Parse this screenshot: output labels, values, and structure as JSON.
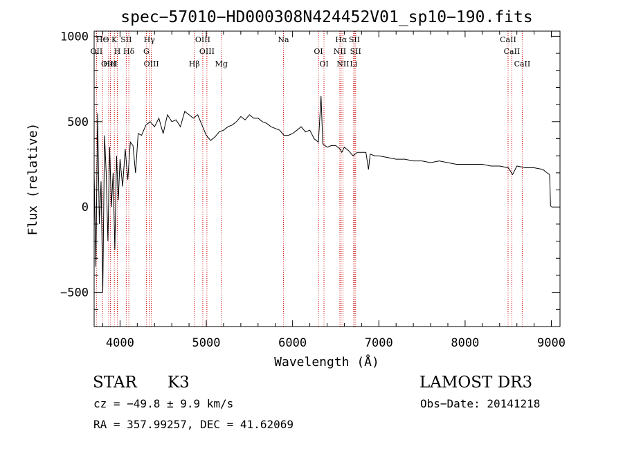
{
  "chart_data": {
    "type": "line",
    "title": "spec−57010−HD000308N424452V01_sp10−190.fits",
    "xlabel": "Wavelength (Å)",
    "ylabel": "Flux (relative)",
    "xlim": [
      3700,
      9100
    ],
    "ylim": [
      -700,
      1030
    ],
    "xticks": [
      4000,
      5000,
      6000,
      7000,
      8000,
      9000
    ],
    "yticks": [
      -500,
      0,
      500,
      1000
    ],
    "x_tick_labels": [
      "4000",
      "5000",
      "6000",
      "7000",
      "8000",
      "9000"
    ],
    "y_tick_labels": [
      "−500",
      "0",
      "500",
      "1000"
    ],
    "series": [
      {
        "name": "flux",
        "x": [
          3700,
          3720,
          3740,
          3760,
          3780,
          3800,
          3820,
          3840,
          3860,
          3880,
          3900,
          3920,
          3940,
          3960,
          3980,
          4000,
          4030,
          4060,
          4090,
          4120,
          4150,
          4180,
          4210,
          4250,
          4300,
          4350,
          4400,
          4450,
          4500,
          4550,
          4600,
          4650,
          4700,
          4750,
          4800,
          4850,
          4900,
          4950,
          5000,
          5050,
          5100,
          5150,
          5200,
          5250,
          5300,
          5350,
          5400,
          5450,
          5500,
          5550,
          5600,
          5650,
          5700,
          5750,
          5800,
          5850,
          5900,
          5950,
          6000,
          6050,
          6100,
          6150,
          6200,
          6250,
          6300,
          6330,
          6350,
          6400,
          6450,
          6500,
          6550,
          6570,
          6600,
          6650,
          6700,
          6750,
          6800,
          6850,
          6880,
          6900,
          6950,
          7000,
          7100,
          7200,
          7300,
          7400,
          7500,
          7600,
          7700,
          7800,
          7900,
          8000,
          8100,
          8200,
          8300,
          8400,
          8500,
          8550,
          8600,
          8700,
          8800,
          8900,
          8950,
          8980,
          8990,
          9000
        ],
        "y": [
          200,
          -350,
          550,
          -100,
          150,
          -500,
          420,
          200,
          -200,
          350,
          0,
          200,
          -250,
          300,
          40,
          280,
          120,
          340,
          160,
          380,
          360,
          200,
          430,
          420,
          480,
          500,
          470,
          520,
          430,
          540,
          500,
          510,
          470,
          560,
          540,
          520,
          540,
          480,
          420,
          390,
          410,
          440,
          450,
          470,
          480,
          500,
          530,
          510,
          540,
          520,
          520,
          500,
          490,
          470,
          460,
          450,
          420,
          420,
          430,
          450,
          470,
          440,
          450,
          400,
          380,
          650,
          370,
          350,
          360,
          360,
          340,
          320,
          350,
          330,
          300,
          320,
          320,
          320,
          220,
          310,
          300,
          300,
          290,
          280,
          280,
          270,
          270,
          260,
          270,
          260,
          250,
          250,
          250,
          250,
          240,
          240,
          230,
          190,
          240,
          230,
          230,
          220,
          200,
          190,
          10,
          0
        ]
      }
    ],
    "lines": [
      {
        "name": "HΘ",
        "x": 3798
      },
      {
        "name": "OII",
        "x": 3727
      },
      {
        "name": "OIII",
        "x": 3869
      },
      {
        "name": "K",
        "x": 3934
      },
      {
        "name": "H",
        "x": 3969
      },
      {
        "name": "HeI",
        "x": 3889
      },
      {
        "name": "SII",
        "x": 4072
      },
      {
        "name": "Hδ",
        "x": 4102
      },
      {
        "name": "OIII",
        "x": 4363
      },
      {
        "name": "Hγ",
        "x": 4340
      },
      {
        "name": "G",
        "x": 4305
      },
      {
        "name": "Hβ",
        "x": 4861
      },
      {
        "name": "OIII",
        "x": 4959
      },
      {
        "name": "OIII",
        "x": 5007
      },
      {
        "name": "Mg",
        "x": 5175
      },
      {
        "name": "Na",
        "x": 5894
      },
      {
        "name": "OI",
        "x": 6300
      },
      {
        "name": "OI",
        "x": 6364
      },
      {
        "name": "Hα",
        "x": 6563
      },
      {
        "name": "NII",
        "x": 6548
      },
      {
        "name": "NII",
        "x": 6584
      },
      {
        "name": "SII",
        "x": 6717
      },
      {
        "name": "SII",
        "x": 6731
      },
      {
        "name": "Li",
        "x": 6708
      },
      {
        "name": "CaII",
        "x": 8498
      },
      {
        "name": "CaII",
        "x": 8542
      },
      {
        "name": "CaII",
        "x": 8662
      }
    ]
  },
  "info": {
    "object_class": "STAR",
    "subclass": "K3",
    "survey": "LAMOST DR3",
    "redshift": "cz = −49.8 ± 9.9 km/s",
    "obs_date": "Obs−Date: 20141218",
    "coords": "RA = 357.99257, DEC =  41.62069"
  },
  "colors": {
    "line_marker": "#cc0000",
    "spectrum": "#000000"
  }
}
